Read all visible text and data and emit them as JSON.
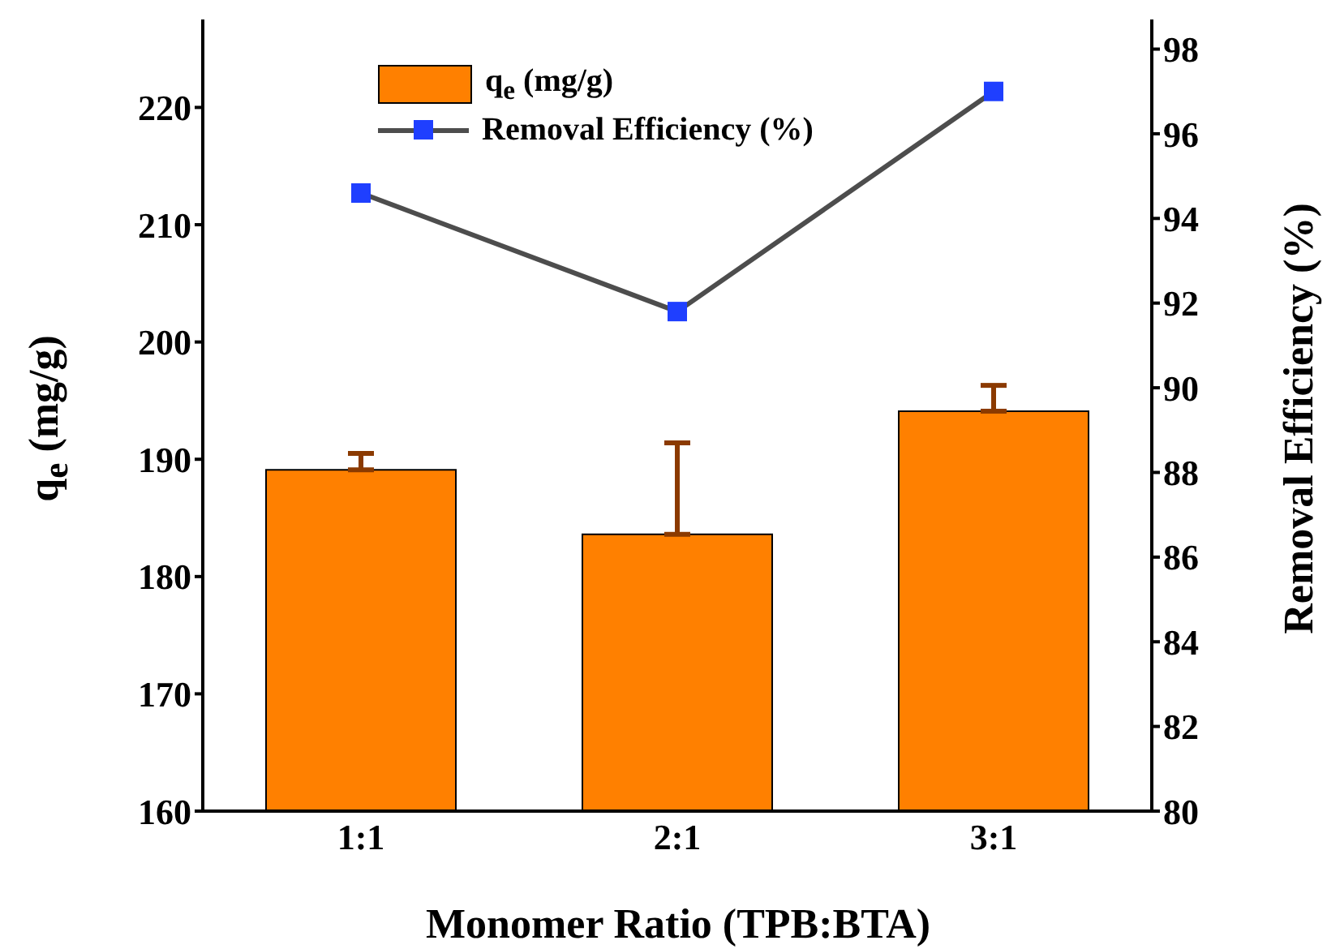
{
  "chart_data": {
    "type": "bar",
    "xlabel": "Monomer Ratio (TPB:BTA)",
    "ylabel": "q$_{e}$ (mg/g)",
    "y2label": "Removal Efficiency (%)",
    "categories": [
      "1:1",
      "2:1",
      "3:1"
    ],
    "series": [
      {
        "name": "q$_{e}$ (mg/g)",
        "color": "#ff8000",
        "values": [
          189.1,
          183.6,
          194.1
        ],
        "errors": [
          [
            189.1,
            190.5
          ],
          [
            183.6,
            191.4
          ],
          [
            194.1,
            196.3
          ]
        ]
      },
      {
        "name": "Removal Efficiency (%)",
        "type": "line",
        "axis": "y2",
        "color": "#1f3fff",
        "values": [
          94.6,
          91.8,
          97.0
        ],
        "marker": "square"
      }
    ],
    "ylim": [
      160,
      227.5
    ],
    "yticks": [
      160,
      170,
      180,
      190,
      200,
      210,
      220
    ],
    "y2lim": [
      80,
      98.7
    ],
    "y2ticks": [
      80,
      82,
      84,
      86,
      88,
      90,
      92,
      94,
      96,
      98
    ],
    "grid": false,
    "legend": "top left"
  }
}
